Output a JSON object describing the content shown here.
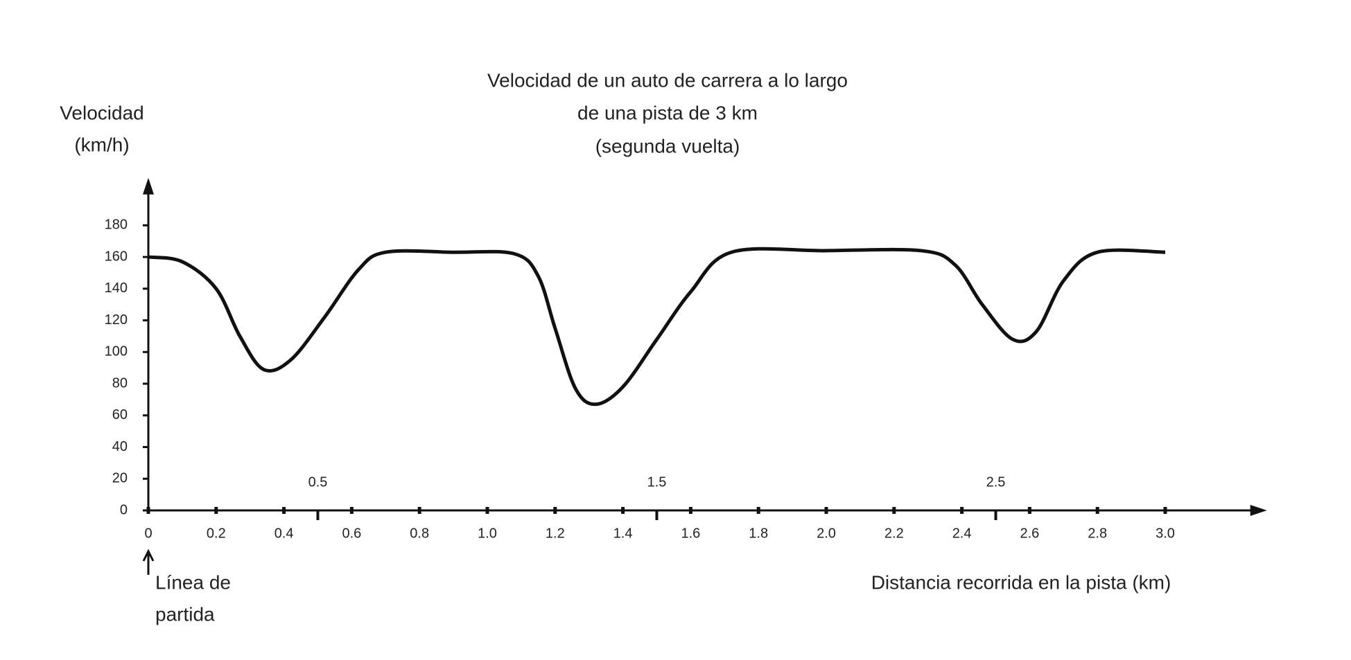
{
  "chart_data": {
    "type": "line",
    "title_lines": [
      "Velocidad de un auto de carrera a lo largo",
      "de una pista de 3 km",
      "(segunda vuelta)"
    ],
    "ylabel_lines": [
      "Velocidad",
      "(km/h)"
    ],
    "xlabel": "Distancia recorrida en la pista (km)",
    "start_label_lines": [
      "Línea de",
      "partida"
    ],
    "x": [
      0,
      0.1,
      0.2,
      0.27,
      0.34,
      0.42,
      0.52,
      0.62,
      0.7,
      0.9,
      1.08,
      1.15,
      1.2,
      1.26,
      1.32,
      1.4,
      1.5,
      1.6,
      1.72,
      2.0,
      2.28,
      2.38,
      2.46,
      2.55,
      2.62,
      2.7,
      2.8,
      3.0
    ],
    "series": [
      {
        "name": "Velocidad",
        "color": "#111111",
        "values": [
          160,
          157,
          140,
          110,
          89,
          95,
          122,
          152,
          163,
          163,
          162,
          148,
          115,
          77,
          67,
          78,
          108,
          138,
          163,
          164,
          164,
          155,
          130,
          108,
          113,
          145,
          163,
          163
        ]
      }
    ],
    "xlim": [
      0,
      3.3
    ],
    "ylim": [
      0,
      210
    ],
    "xticks": [
      0,
      0.2,
      0.4,
      0.6,
      0.8,
      {
        "value": 1,
        "label": "1.0"
      },
      1.2,
      1.4,
      1.6,
      1.8,
      {
        "value": 2,
        "label": "2.0"
      },
      2.2,
      2.4,
      2.6,
      2.8,
      {
        "value": 3,
        "label": "3.0"
      }
    ],
    "secondary_xticks": [
      0.5,
      1.5,
      2.5
    ],
    "yticks": [
      0,
      20,
      40,
      60,
      80,
      100,
      120,
      140,
      160,
      180
    ],
    "grid": false
  }
}
